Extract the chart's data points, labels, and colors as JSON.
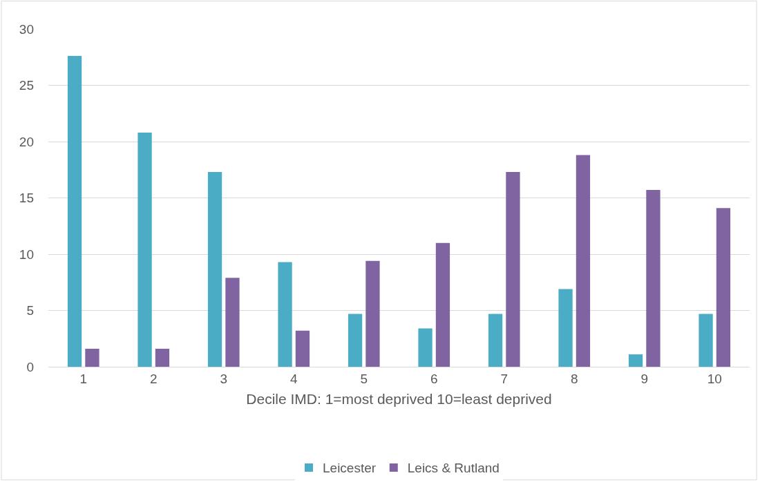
{
  "chart_data": {
    "type": "bar",
    "xlabel": "Decile IMD: 1=most deprived 10=least deprived",
    "categories": [
      "1",
      "2",
      "3",
      "4",
      "5",
      "6",
      "7",
      "8",
      "9",
      "10"
    ],
    "series": [
      {
        "name": "Leicester",
        "color": "#4bacc6",
        "values": [
          27.6,
          20.8,
          17.3,
          9.3,
          4.7,
          3.4,
          4.7,
          6.9,
          1.1,
          4.7
        ]
      },
      {
        "name": "Leics & Rutland",
        "color": "#8064a2",
        "values": [
          1.6,
          1.6,
          7.9,
          3.2,
          9.4,
          11.0,
          17.3,
          18.8,
          15.7,
          14.1
        ]
      }
    ],
    "ylim": [
      0,
      30
    ],
    "yticks": [
      0,
      5,
      10,
      15,
      20,
      25,
      30
    ],
    "grid": "y",
    "legend": "bottom"
  }
}
